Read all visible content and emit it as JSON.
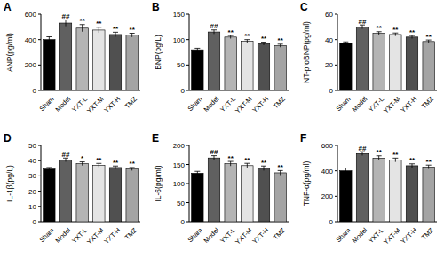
{
  "chart_data": [
    {
      "type": "bar",
      "title": "A",
      "y_label": "ANP(pg/ml)",
      "categories": [
        "Sham",
        "Model",
        "YXT-L",
        "YXT-M",
        "YXT-H",
        "TMZ"
      ],
      "values": [
        400,
        530,
        490,
        475,
        440,
        435
      ],
      "errors": [
        22,
        25,
        28,
        22,
        18,
        15
      ],
      "significance": [
        null,
        "##",
        "**",
        "**",
        "**",
        "**"
      ],
      "colors": [
        "#000000",
        "#606060",
        "#b4b4b4",
        "#e4e4e4",
        "#505050",
        "#a4a4a4"
      ],
      "ylim": [
        0,
        600
      ],
      "yticks": [
        0,
        200,
        400,
        600
      ]
    },
    {
      "type": "bar",
      "title": "B",
      "y_label": "BNP(pg/L)",
      "categories": [
        "Sham",
        "Model",
        "YXT-L",
        "YXT-M",
        "YXT-H",
        "TMZ"
      ],
      "values": [
        80,
        115,
        105,
        97,
        92,
        88
      ],
      "errors": [
        3,
        4,
        3,
        3,
        3,
        3
      ],
      "significance": [
        null,
        "##",
        "**",
        "**",
        "**",
        "**"
      ],
      "colors": [
        "#000000",
        "#606060",
        "#b4b4b4",
        "#e4e4e4",
        "#505050",
        "#a4a4a4"
      ],
      "ylim": [
        0,
        150
      ],
      "yticks": [
        0,
        50,
        100,
        150
      ]
    },
    {
      "type": "bar",
      "title": "C",
      "y_label": "NT-proBNP(pg/ml)",
      "categories": [
        "Sham",
        "Model",
        "YXT-L",
        "YXT-M",
        "YXT-H",
        "TMZ"
      ],
      "values": [
        37,
        50,
        45,
        44,
        42,
        38.5
      ],
      "errors": [
        1.2,
        1.5,
        1.2,
        1.2,
        1.2,
        1.2
      ],
      "significance": [
        null,
        "##",
        "**",
        "**",
        "**",
        "**"
      ],
      "colors": [
        "#000000",
        "#606060",
        "#b4b4b4",
        "#e4e4e4",
        "#505050",
        "#a4a4a4"
      ],
      "ylim": [
        0,
        60
      ],
      "yticks": [
        0,
        20,
        40,
        60
      ]
    },
    {
      "type": "bar",
      "title": "D",
      "y_label": "IL-1β(pg/L)",
      "categories": [
        "Sham",
        "Model",
        "YXT-L",
        "YXT-M",
        "YXT-H",
        "TMZ"
      ],
      "values": [
        34.5,
        40.5,
        38,
        37,
        35.5,
        34.5
      ],
      "errors": [
        1,
        1.2,
        1.2,
        1.2,
        1,
        1
      ],
      "significance": [
        null,
        "##",
        "*",
        "**",
        "**",
        "**"
      ],
      "colors": [
        "#000000",
        "#606060",
        "#b4b4b4",
        "#e4e4e4",
        "#505050",
        "#a4a4a4"
      ],
      "ylim": [
        0,
        50
      ],
      "yticks": [
        0,
        10,
        20,
        30,
        40,
        50
      ]
    },
    {
      "type": "bar",
      "title": "E",
      "y_label": "IL-6(pg/ml)",
      "categories": [
        "Sham",
        "Model",
        "YXT-L",
        "YXT-M",
        "YXT-H",
        "TMZ"
      ],
      "values": [
        127,
        167,
        152,
        147,
        140,
        128
      ],
      "errors": [
        5,
        6,
        6,
        6,
        6,
        6
      ],
      "significance": [
        null,
        "##",
        "**",
        "**",
        "**",
        "**"
      ],
      "colors": [
        "#000000",
        "#606060",
        "#b4b4b4",
        "#e4e4e4",
        "#505050",
        "#a4a4a4"
      ],
      "ylim": [
        0,
        200
      ],
      "yticks": [
        0,
        50,
        100,
        150,
        200
      ]
    },
    {
      "type": "bar",
      "title": "F",
      "y_label": "TNF-α(pg/ml)",
      "categories": [
        "Sham",
        "Model",
        "YXT-L",
        "YXT-M",
        "YXT-H",
        "TMZ"
      ],
      "values": [
        400,
        535,
        500,
        485,
        440,
        430
      ],
      "errors": [
        22,
        15,
        18,
        15,
        15,
        15
      ],
      "significance": [
        null,
        "##",
        "**",
        "**",
        "**",
        "**"
      ],
      "colors": [
        "#000000",
        "#606060",
        "#b4b4b4",
        "#e4e4e4",
        "#505050",
        "#a4a4a4"
      ],
      "ylim": [
        0,
        600
      ],
      "yticks": [
        0,
        200,
        400,
        600
      ]
    }
  ]
}
